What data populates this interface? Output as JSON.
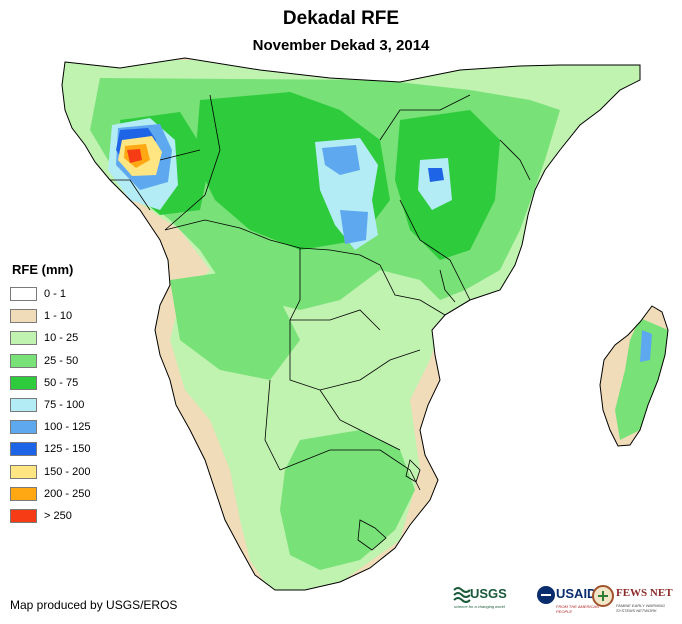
{
  "header": {
    "title": "Dekadal RFE",
    "subtitle": "November Dekad 3, 2014"
  },
  "legend": {
    "title": "RFE (mm)",
    "items": [
      {
        "label": "0 - 1",
        "color": "#ffffff"
      },
      {
        "label": "1 - 10",
        "color": "#f0dcb8"
      },
      {
        "label": "10 - 25",
        "color": "#c0f2b0"
      },
      {
        "label": "25 - 50",
        "color": "#78e178"
      },
      {
        "label": "50 - 75",
        "color": "#2ecb3c"
      },
      {
        "label": "75 - 100",
        "color": "#b4ecf6"
      },
      {
        "label": "100 - 125",
        "color": "#5ea8f0"
      },
      {
        "label": "125 - 150",
        "color": "#1e64e6"
      },
      {
        "label": "150 - 200",
        "color": "#ffe682"
      },
      {
        "label": "200 - 250",
        "color": "#ffa814"
      },
      {
        "label": "> 250",
        "color": "#f53c14"
      }
    ]
  },
  "footer": {
    "credit": "Map produced by USGS/EROS"
  },
  "logos": {
    "usgs": {
      "name": "USGS",
      "tagline": "science for a changing world"
    },
    "usaid": {
      "name": "USAID",
      "tagline": "FROM THE AMERICAN PEOPLE"
    },
    "fewsnet": {
      "name": "FEWS NET",
      "tagline": "FAMINE EARLY WARNING SYSTEMS NETWORK"
    }
  }
}
